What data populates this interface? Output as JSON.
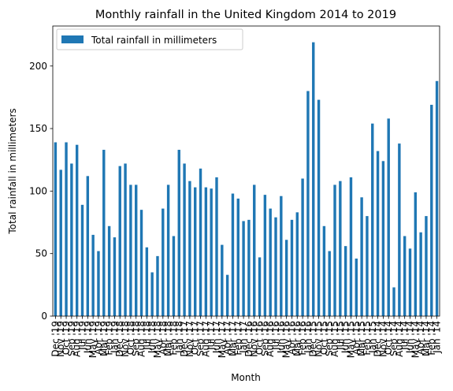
{
  "chart_data": {
    "type": "bar",
    "title": "Monthly rainfall in the United Kingdom 2014 to 2019",
    "xlabel": "Month",
    "ylabel": "Total rainfall in millimeters",
    "ylim": [
      0,
      232
    ],
    "yticks": [
      0,
      50,
      100,
      150,
      200
    ],
    "grid": false,
    "legend_position": "top-left",
    "bar_color": "#1f77b4",
    "series": [
      {
        "name": "Total rainfall in millimeters",
        "values": [
          139,
          117,
          139,
          122,
          137,
          89,
          112,
          65,
          52,
          133,
          72,
          63,
          120,
          122,
          105,
          105,
          85,
          55,
          35,
          48,
          86,
          105,
          64,
          133,
          122,
          108,
          103,
          118,
          103,
          102,
          111,
          57,
          33,
          98,
          94,
          76,
          77,
          105,
          47,
          97,
          86,
          79,
          96,
          61,
          77,
          83,
          110,
          180,
          219,
          173,
          72,
          52,
          105,
          108,
          56,
          111,
          46,
          95,
          80,
          154,
          132,
          124,
          158,
          23,
          138,
          64,
          54,
          99,
          67,
          80,
          169,
          188
        ]
      }
    ],
    "categories": [
      "Dec '19",
      "Nov '19",
      "Oct '19",
      "Sep '19",
      "Aug '19",
      "Jul '19",
      "Jun '19",
      "May '19",
      "Apr '19",
      "Mar '19",
      "Feb '19",
      "Jan '19",
      "Dec '18",
      "Nov '18",
      "Oct '18",
      "Sep '18",
      "Aug '18",
      "Jul '18",
      "Jun '18",
      "May '18",
      "Apr '18",
      "Mar '18",
      "Feb '18",
      "Jan '18",
      "Dec '17",
      "Nov '17",
      "Oct '17",
      "Sep '17",
      "Aug '17",
      "Jul '17",
      "Jun '17",
      "May '17",
      "Apr '17",
      "Mar '17",
      "Feb '17",
      "Jan '17",
      "Dec '16",
      "Nov '16",
      "Oct '16",
      "Sep '16",
      "Aug '16",
      "Jul '16",
      "Jun '16",
      "May '16",
      "Apr '16",
      "Mar '16",
      "Feb '16",
      "Jan '16",
      "Dec '15",
      "Nov '15",
      "Oct '15",
      "Sep '15",
      "Aug '15",
      "Jul '15",
      "Jun '15",
      "May '15",
      "Apr '15",
      "Mar '15",
      "Feb '15",
      "Jan '15",
      "Dec '14",
      "Nov '14",
      "Oct '14",
      "Sep '14",
      "Aug '14",
      "Jul '14",
      "Jun '14",
      "May '14",
      "Apr '14",
      "Mar '14",
      "Feb '14",
      "Jan '14"
    ]
  }
}
